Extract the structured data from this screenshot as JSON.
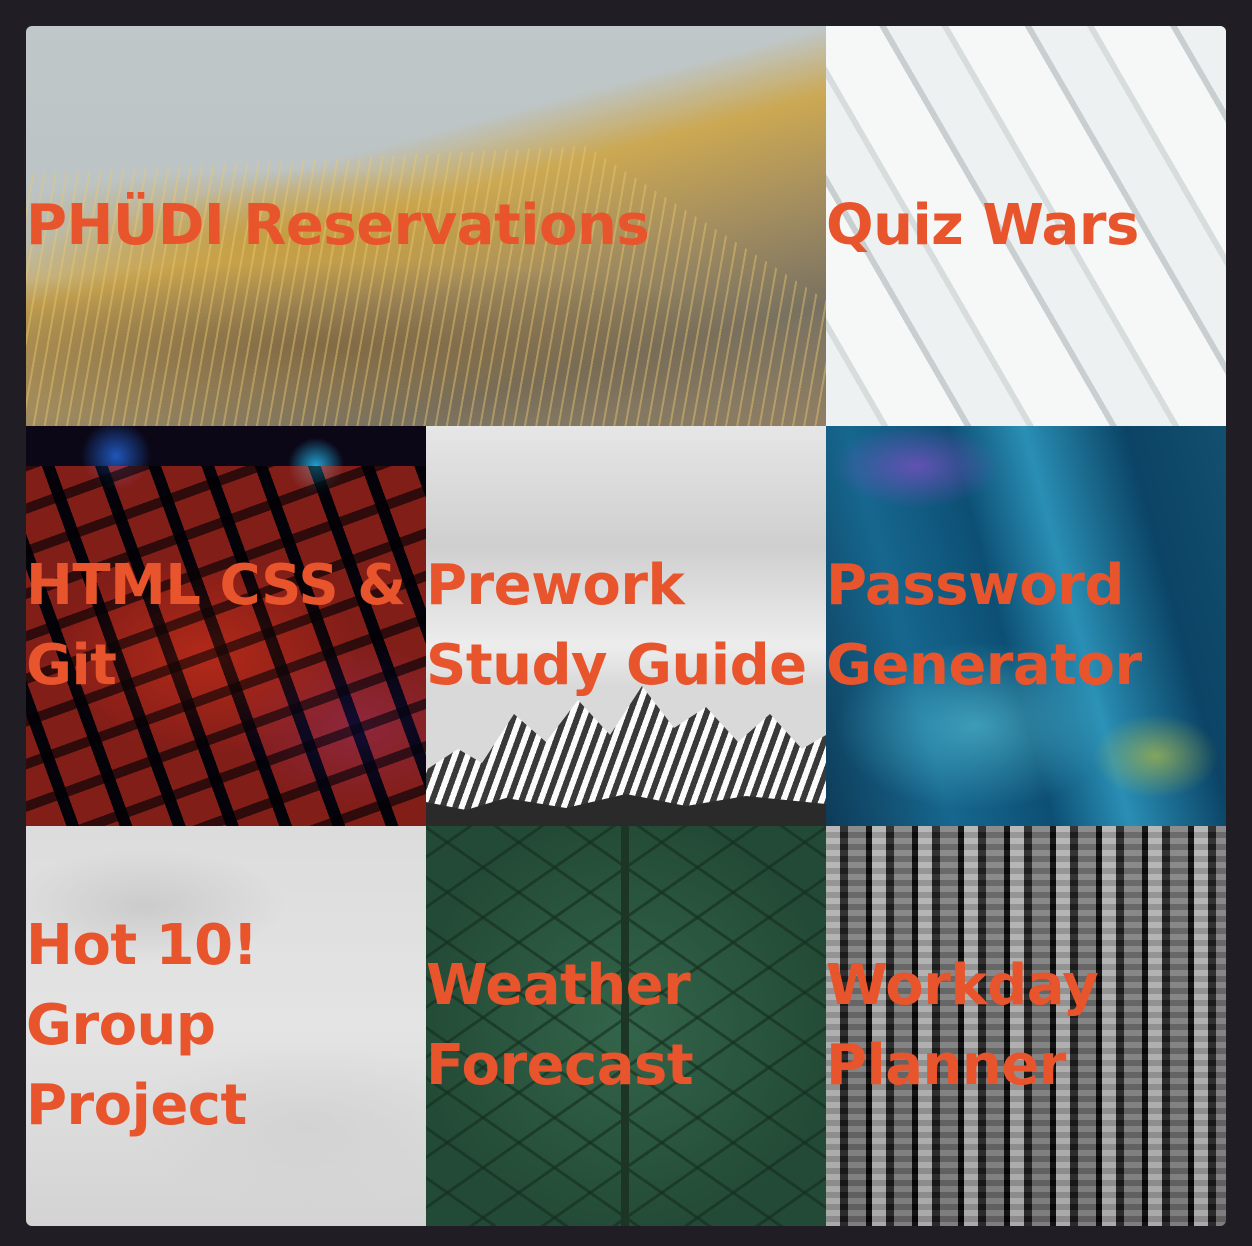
{
  "projects": [
    {
      "title": "PHÜDI Reservations"
    },
    {
      "title": "Quiz Wars"
    },
    {
      "title": "HTML CSS & Git"
    },
    {
      "title": "Prework Study Guide"
    },
    {
      "title": "Password Generator"
    },
    {
      "title": "Hot 10! Group Project"
    },
    {
      "title": "Weather Forecast"
    },
    {
      "title": "Workday Planner"
    }
  ],
  "colors": {
    "page_background": "#201e24",
    "label_text": "#e8542b"
  }
}
